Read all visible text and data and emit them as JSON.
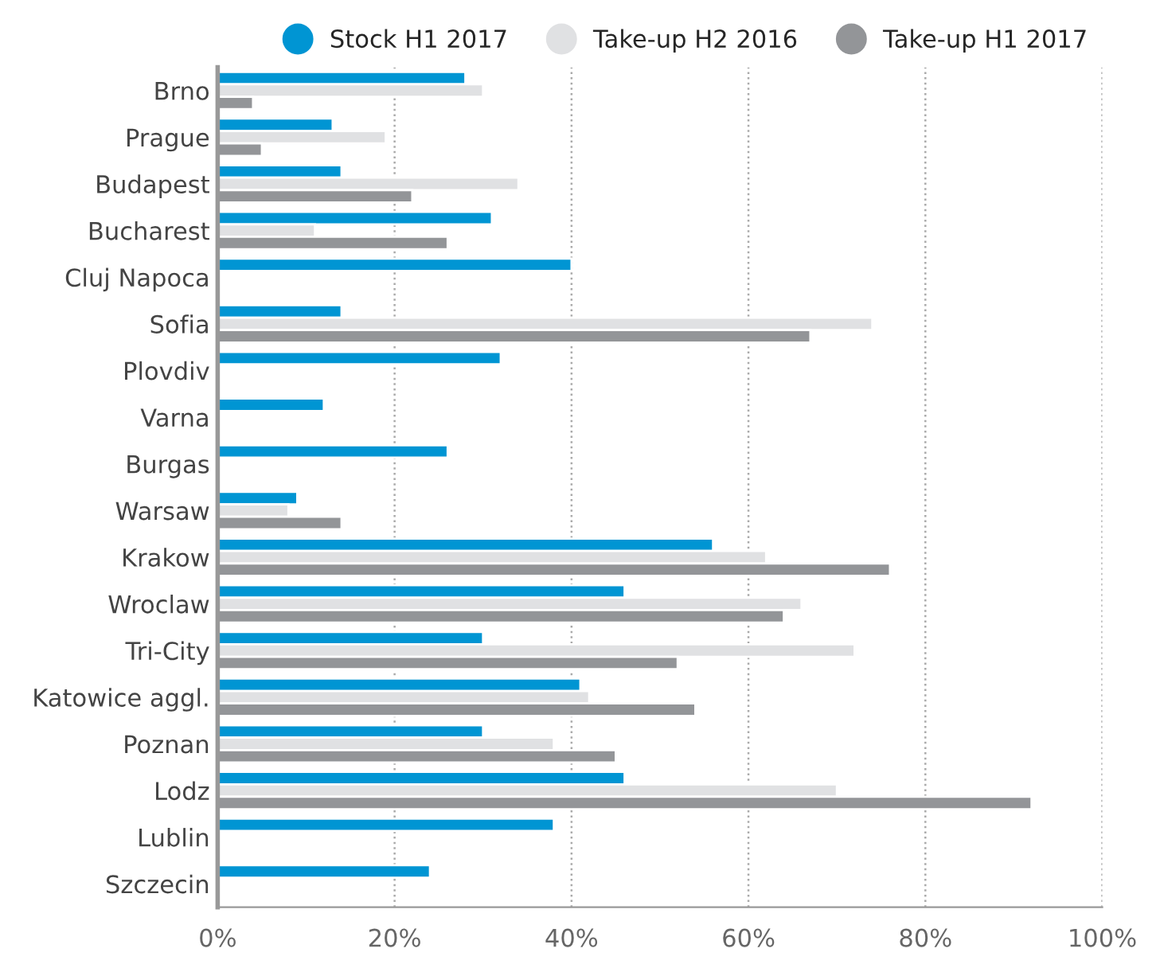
{
  "chart_data": {
    "type": "bar",
    "orientation": "horizontal",
    "categories": [
      "Brno",
      "Prague",
      "Budapest",
      "Bucharest",
      "Cluj Napoca",
      "Sofia",
      "Plovdiv",
      "Varna",
      "Burgas",
      "Warsaw",
      "Krakow",
      "Wroclaw",
      "Tri-City",
      "Katowice aggl.",
      "Poznan",
      "Lodz",
      "Lublin",
      "Szczecin"
    ],
    "series": [
      {
        "name": "Stock H1 2017",
        "color": "#0095d3",
        "values": [
          28,
          13,
          14,
          31,
          40,
          14,
          32,
          12,
          26,
          9,
          56,
          46,
          30,
          41,
          30,
          46,
          38,
          24
        ]
      },
      {
        "name": "Take-up H2 2016",
        "color": "#e0e1e3",
        "values": [
          30,
          19,
          34,
          11,
          null,
          74,
          null,
          null,
          null,
          8,
          62,
          66,
          72,
          42,
          38,
          70,
          null,
          null
        ]
      },
      {
        "name": "Take-up H1 2017",
        "color": "#939598",
        "values": [
          4,
          5,
          22,
          26,
          null,
          67,
          null,
          null,
          null,
          14,
          76,
          64,
          52,
          54,
          45,
          92,
          null,
          null
        ]
      }
    ],
    "xlim": [
      0,
      100
    ],
    "xticks": [
      {
        "value": 0,
        "label": "0%"
      },
      {
        "value": 20,
        "label": "20%"
      },
      {
        "value": 40,
        "label": "40%"
      },
      {
        "value": 60,
        "label": "60%"
      },
      {
        "value": 80,
        "label": "80%"
      },
      {
        "value": 100,
        "label": "100%"
      }
    ],
    "grid": "x",
    "legend": "top right"
  }
}
